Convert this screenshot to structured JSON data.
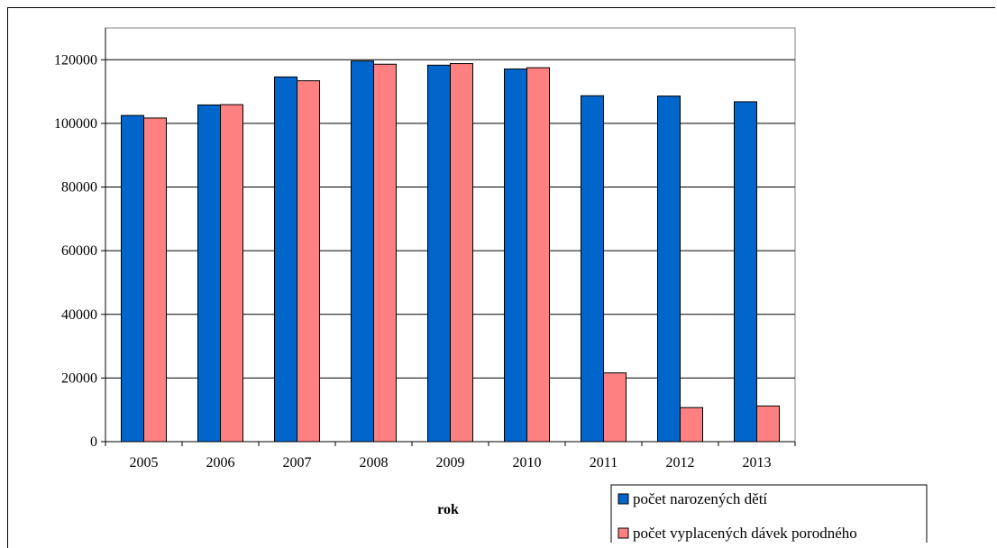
{
  "chart_data": {
    "type": "bar",
    "categories": [
      "2005",
      "2006",
      "2007",
      "2008",
      "2009",
      "2010",
      "2011",
      "2012",
      "2013"
    ],
    "series": [
      {
        "name": "počet narozených dětí",
        "color": "#0066CC",
        "values": [
          102500,
          105800,
          114600,
          119600,
          118300,
          117100,
          108700,
          108600,
          106800
        ]
      },
      {
        "name": "počet vyplacených dávek porodného",
        "color": "#FF8080",
        "values": [
          101700,
          105900,
          113400,
          118600,
          118800,
          117500,
          21600,
          10700,
          11200
        ]
      }
    ],
    "xlabel": "rok",
    "ylabel": "",
    "ylim": [
      0,
      130000
    ],
    "yticks": [
      0,
      20000,
      40000,
      60000,
      80000,
      100000,
      120000
    ],
    "grid": true,
    "legend_position": "bottom-right"
  }
}
